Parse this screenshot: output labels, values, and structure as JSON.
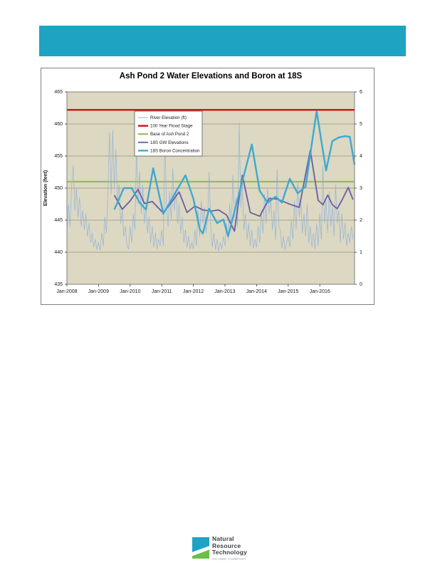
{
  "colors": {
    "banner_teal": "#1EA3C3",
    "plot_background": "#DCD8C2",
    "gridline": "#98937F",
    "figure_border": "#808080",
    "axis_text": "#1a1a1a",
    "legend_border": "#595959",
    "logo_teal": "#1EA3C3",
    "logo_green": "#6CBE45",
    "logo_text": "#3D4045",
    "logo_tagline": "#97A0A6"
  },
  "logo": {
    "line1": "Natural",
    "line2": "Resource",
    "line3": "Technology",
    "tagline": "AN OBG COMPANY"
  },
  "chart_data": {
    "type": "line",
    "title": "Ash Pond 2 Water Elevations and Boron at 18S",
    "ylabel_left": "Elevation (feet)",
    "ylim_left": [
      435,
      465
    ],
    "yticks_left": [
      465,
      460,
      455,
      450,
      445,
      440,
      435
    ],
    "ylim_right": [
      0,
      6
    ],
    "yticks_right": [
      6,
      5,
      4,
      3,
      2,
      1,
      0
    ],
    "xlim": [
      2008.0,
      2017.1
    ],
    "xticks": [
      2008,
      2009,
      2010,
      2011,
      2012,
      2013,
      2014,
      2015,
      2016
    ],
    "xtick_labels": [
      "Jan-2008",
      "Jan-2009",
      "Jan-2010",
      "Jan-2011",
      "Jan-2012",
      "Jan-2013",
      "Jan-2014",
      "Jan-2015",
      "Jan-2016"
    ],
    "grid": "horizontal",
    "legend_position": "upper-left-inside",
    "series": [
      {
        "name": "River Elevation (ft)",
        "color": "#95B3D7",
        "axis": "left",
        "width": 0.7,
        "points": [
          [
            2008.0,
            443.0
          ],
          [
            2008.05,
            447.5
          ],
          [
            2008.1,
            444.0
          ],
          [
            2008.15,
            450.5
          ],
          [
            2008.2,
            453.5
          ],
          [
            2008.25,
            446.5
          ],
          [
            2008.3,
            450.0
          ],
          [
            2008.35,
            445.5
          ],
          [
            2008.4,
            448.5
          ],
          [
            2008.45,
            444.0
          ],
          [
            2008.5,
            446.5
          ],
          [
            2008.55,
            443.5
          ],
          [
            2008.6,
            446.0
          ],
          [
            2008.65,
            442.5
          ],
          [
            2008.7,
            444.5
          ],
          [
            2008.75,
            441.5
          ],
          [
            2008.8,
            443.0
          ],
          [
            2008.85,
            440.8
          ],
          [
            2008.9,
            442.0
          ],
          [
            2008.95,
            440.4
          ],
          [
            2009.0,
            441.5
          ],
          [
            2009.05,
            440.3
          ],
          [
            2009.1,
            443.0
          ],
          [
            2009.15,
            441.0
          ],
          [
            2009.2,
            445.5
          ],
          [
            2009.25,
            443.0
          ],
          [
            2009.3,
            450.0
          ],
          [
            2009.35,
            458.7
          ],
          [
            2009.4,
            449.0
          ],
          [
            2009.45,
            459.0
          ],
          [
            2009.5,
            450.0
          ],
          [
            2009.55,
            456.0
          ],
          [
            2009.6,
            448.0
          ],
          [
            2009.65,
            450.5
          ],
          [
            2009.7,
            444.5
          ],
          [
            2009.75,
            446.5
          ],
          [
            2009.8,
            442.5
          ],
          [
            2009.85,
            444.0
          ],
          [
            2009.9,
            441.0
          ],
          [
            2009.95,
            440.5
          ],
          [
            2010.0,
            444.0
          ],
          [
            2010.05,
            441.5
          ],
          [
            2010.1,
            446.0
          ],
          [
            2010.15,
            443.5
          ],
          [
            2010.2,
            456.5
          ],
          [
            2010.25,
            447.5
          ],
          [
            2010.3,
            452.5
          ],
          [
            2010.35,
            446.0
          ],
          [
            2010.4,
            450.5
          ],
          [
            2010.45,
            444.5
          ],
          [
            2010.5,
            447.0
          ],
          [
            2010.55,
            443.0
          ],
          [
            2010.6,
            445.5
          ],
          [
            2010.65,
            441.5
          ],
          [
            2010.7,
            444.0
          ],
          [
            2010.75,
            440.8
          ],
          [
            2010.8,
            443.0
          ],
          [
            2010.85,
            440.5
          ],
          [
            2010.9,
            442.0
          ],
          [
            2010.95,
            441.0
          ],
          [
            2011.0,
            443.5
          ],
          [
            2011.05,
            441.0
          ],
          [
            2011.1,
            458.8
          ],
          [
            2011.15,
            447.0
          ],
          [
            2011.2,
            444.0
          ],
          [
            2011.25,
            449.5
          ],
          [
            2011.3,
            445.0
          ],
          [
            2011.35,
            453.0
          ],
          [
            2011.4,
            446.5
          ],
          [
            2011.45,
            450.0
          ],
          [
            2011.5,
            444.5
          ],
          [
            2011.55,
            447.5
          ],
          [
            2011.6,
            443.0
          ],
          [
            2011.65,
            445.5
          ],
          [
            2011.7,
            441.5
          ],
          [
            2011.75,
            443.5
          ],
          [
            2011.8,
            440.8
          ],
          [
            2011.85,
            442.5
          ],
          [
            2011.9,
            440.5
          ],
          [
            2011.95,
            441.5
          ],
          [
            2012.0,
            440.5
          ],
          [
            2012.05,
            443.5
          ],
          [
            2012.1,
            441.0
          ],
          [
            2012.15,
            446.5
          ],
          [
            2012.2,
            442.5
          ],
          [
            2012.25,
            448.0
          ],
          [
            2012.3,
            444.5
          ],
          [
            2012.35,
            447.0
          ],
          [
            2012.4,
            443.0
          ],
          [
            2012.45,
            445.5
          ],
          [
            2012.5,
            452.5
          ],
          [
            2012.55,
            444.0
          ],
          [
            2012.6,
            440.8
          ],
          [
            2012.65,
            443.0
          ],
          [
            2012.7,
            440.4
          ],
          [
            2012.75,
            442.0
          ],
          [
            2012.8,
            440.2
          ],
          [
            2012.85,
            441.5
          ],
          [
            2012.9,
            440.5
          ],
          [
            2012.95,
            442.5
          ],
          [
            2013.0,
            441.0
          ],
          [
            2013.05,
            444.5
          ],
          [
            2013.1,
            442.0
          ],
          [
            2013.15,
            447.5
          ],
          [
            2013.2,
            443.5
          ],
          [
            2013.25,
            452.0
          ],
          [
            2013.3,
            445.5
          ],
          [
            2013.35,
            448.5
          ],
          [
            2013.4,
            444.0
          ],
          [
            2013.45,
            460.2
          ],
          [
            2013.5,
            447.0
          ],
          [
            2013.55,
            450.5
          ],
          [
            2013.6,
            443.5
          ],
          [
            2013.65,
            446.0
          ],
          [
            2013.7,
            442.0
          ],
          [
            2013.75,
            444.5
          ],
          [
            2013.8,
            441.0
          ],
          [
            2013.85,
            443.5
          ],
          [
            2013.9,
            440.6
          ],
          [
            2013.95,
            442.0
          ],
          [
            2014.0,
            440.8
          ],
          [
            2014.05,
            444.0
          ],
          [
            2014.1,
            441.5
          ],
          [
            2014.15,
            446.5
          ],
          [
            2014.2,
            443.0
          ],
          [
            2014.25,
            449.0
          ],
          [
            2014.3,
            444.5
          ],
          [
            2014.35,
            450.0
          ],
          [
            2014.4,
            446.0
          ],
          [
            2014.45,
            448.5
          ],
          [
            2014.5,
            443.5
          ],
          [
            2014.55,
            446.5
          ],
          [
            2014.6,
            442.0
          ],
          [
            2014.65,
            452.9
          ],
          [
            2014.7,
            444.0
          ],
          [
            2014.75,
            443.5
          ],
          [
            2014.8,
            440.6
          ],
          [
            2014.85,
            442.5
          ],
          [
            2014.9,
            440.4
          ],
          [
            2014.95,
            441.5
          ],
          [
            2015.0,
            442.5
          ],
          [
            2015.05,
            440.8
          ],
          [
            2015.1,
            445.0
          ],
          [
            2015.15,
            442.0
          ],
          [
            2015.2,
            448.0
          ],
          [
            2015.25,
            443.5
          ],
          [
            2015.3,
            451.0
          ],
          [
            2015.35,
            445.5
          ],
          [
            2015.4,
            448.5
          ],
          [
            2015.45,
            443.0
          ],
          [
            2015.5,
            446.0
          ],
          [
            2015.55,
            442.5
          ],
          [
            2015.6,
            447.5
          ],
          [
            2015.65,
            441.5
          ],
          [
            2015.7,
            444.0
          ],
          [
            2015.75,
            440.8
          ],
          [
            2015.8,
            443.0
          ],
          [
            2015.85,
            440.5
          ],
          [
            2015.9,
            444.5
          ],
          [
            2015.95,
            441.0
          ],
          [
            2016.0,
            446.0
          ],
          [
            2016.05,
            442.0
          ],
          [
            2016.1,
            453.5
          ],
          [
            2016.15,
            444.5
          ],
          [
            2016.2,
            448.0
          ],
          [
            2016.25,
            443.0
          ],
          [
            2016.3,
            449.5
          ],
          [
            2016.35,
            444.0
          ],
          [
            2016.4,
            447.0
          ],
          [
            2016.45,
            442.5
          ],
          [
            2016.5,
            450.5
          ],
          [
            2016.55,
            444.5
          ],
          [
            2016.6,
            446.5
          ],
          [
            2016.65,
            441.5
          ],
          [
            2016.7,
            446.0
          ],
          [
            2016.75,
            442.0
          ],
          [
            2016.8,
            444.5
          ],
          [
            2016.85,
            441.0
          ],
          [
            2016.9,
            443.0
          ],
          [
            2016.95,
            441.5
          ],
          [
            2017.0,
            444.0
          ],
          [
            2017.05,
            442.0
          ]
        ]
      },
      {
        "name": "100 Year Flood Stage",
        "color": "#CC1111",
        "axis": "left",
        "width": 2.4,
        "points": [
          [
            2008.0,
            462.2
          ],
          [
            2017.1,
            462.2
          ]
        ]
      },
      {
        "name": "Base of Ash Pond 2",
        "color": "#9BBB59",
        "axis": "left",
        "width": 2.2,
        "points": [
          [
            2008.0,
            451.0
          ],
          [
            2017.1,
            451.0
          ]
        ]
      },
      {
        "name": "18S GW Elevations",
        "color": "#6B5CA5",
        "axis": "left",
        "width": 1.8,
        "points": [
          [
            2009.5,
            448.9
          ],
          [
            2009.75,
            446.7
          ],
          [
            2010.0,
            448.0
          ],
          [
            2010.25,
            449.8
          ],
          [
            2010.45,
            447.6
          ],
          [
            2010.7,
            447.9
          ],
          [
            2011.05,
            446.1
          ],
          [
            2011.55,
            449.4
          ],
          [
            2011.8,
            446.2
          ],
          [
            2012.05,
            447.2
          ],
          [
            2012.3,
            446.6
          ],
          [
            2012.55,
            446.4
          ],
          [
            2012.8,
            446.6
          ],
          [
            2013.05,
            445.8
          ],
          [
            2013.3,
            443.3
          ],
          [
            2013.55,
            452.0
          ],
          [
            2013.8,
            446.2
          ],
          [
            2014.1,
            445.6
          ],
          [
            2014.4,
            448.4
          ],
          [
            2014.65,
            448.3
          ],
          [
            2014.9,
            447.8
          ],
          [
            2015.1,
            447.4
          ],
          [
            2015.35,
            447.0
          ],
          [
            2015.7,
            455.9
          ],
          [
            2015.95,
            448.1
          ],
          [
            2016.1,
            447.4
          ],
          [
            2016.25,
            448.9
          ],
          [
            2016.4,
            447.4
          ],
          [
            2016.55,
            446.8
          ],
          [
            2016.7,
            448.1
          ],
          [
            2016.9,
            450.1
          ],
          [
            2017.05,
            448.2
          ]
        ]
      },
      {
        "name": "18S Boron Concentration",
        "color": "#3FA8D2",
        "axis": "right",
        "width": 2.4,
        "points": [
          [
            2009.5,
            2.33
          ],
          [
            2009.8,
            3.0
          ],
          [
            2010.05,
            3.0
          ],
          [
            2010.3,
            2.55
          ],
          [
            2010.5,
            2.33
          ],
          [
            2010.73,
            3.62
          ],
          [
            2011.05,
            2.2
          ],
          [
            2011.75,
            3.4
          ],
          [
            2012.0,
            2.67
          ],
          [
            2012.2,
            1.73
          ],
          [
            2012.3,
            1.58
          ],
          [
            2012.5,
            2.36
          ],
          [
            2012.75,
            1.91
          ],
          [
            2012.95,
            2.02
          ],
          [
            2013.1,
            1.5
          ],
          [
            2013.85,
            4.36
          ],
          [
            2014.1,
            2.91
          ],
          [
            2014.35,
            2.55
          ],
          [
            2014.6,
            2.73
          ],
          [
            2014.8,
            2.55
          ],
          [
            2015.05,
            3.29
          ],
          [
            2015.3,
            2.84
          ],
          [
            2015.55,
            3.05
          ],
          [
            2015.9,
            5.4
          ],
          [
            2016.2,
            3.55
          ],
          [
            2016.4,
            4.47
          ],
          [
            2016.6,
            4.58
          ],
          [
            2016.8,
            4.62
          ],
          [
            2016.95,
            4.6
          ],
          [
            2017.1,
            3.73
          ]
        ]
      }
    ]
  }
}
